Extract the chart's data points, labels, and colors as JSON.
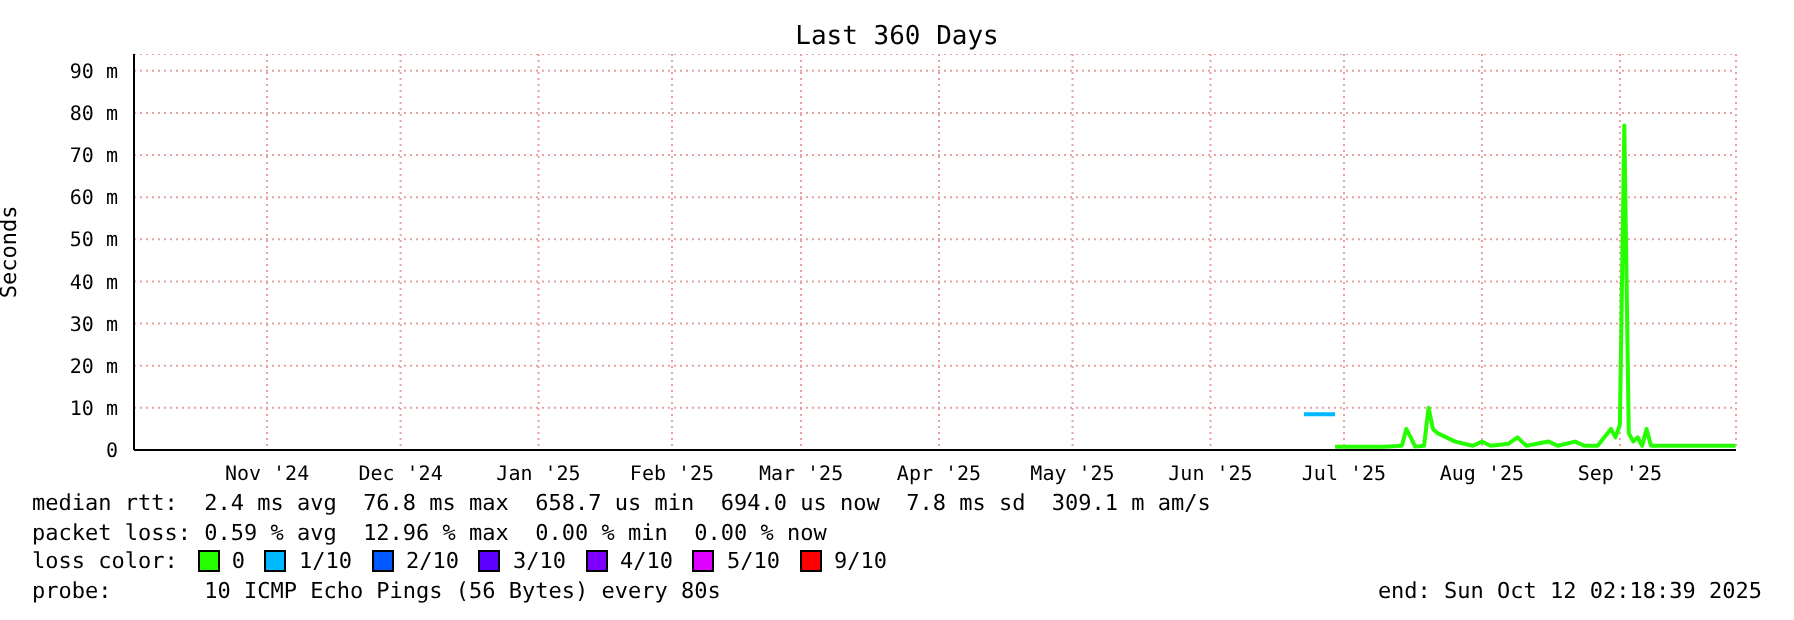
{
  "chart_data": {
    "type": "line",
    "title": "Last 360 Days",
    "ylabel": "Seconds",
    "xlim": [
      "2024-10-17T02:18",
      "2025-10-12T02:18"
    ],
    "xticks": [
      {
        "value": "2024-11-16",
        "label": "Nov '24"
      },
      {
        "value": "2024-12-16",
        "label": "Dec '24"
      },
      {
        "value": "2025-01-16",
        "label": "Jan '25"
      },
      {
        "value": "2025-02-15",
        "label": "Feb '25"
      },
      {
        "value": "2025-03-16",
        "label": "Mar '25"
      },
      {
        "value": "2025-04-16",
        "label": "Apr '25"
      },
      {
        "value": "2025-05-16",
        "label": "May '25"
      },
      {
        "value": "2025-06-16",
        "label": "Jun '25"
      },
      {
        "value": "2025-07-16",
        "label": "Jul '25"
      },
      {
        "value": "2025-08-16",
        "label": "Aug '25"
      },
      {
        "value": "2025-09-16",
        "label": "Sep '25"
      }
    ],
    "ylim": [
      0,
      94
    ],
    "yticks": [
      0,
      {
        "value": 10,
        "label": "10 m"
      },
      {
        "value": 20,
        "label": "20 m"
      },
      {
        "value": 30,
        "label": "30 m"
      },
      {
        "value": 40,
        "label": "40 m"
      },
      {
        "value": 50,
        "label": "50 m"
      },
      {
        "value": 60,
        "label": "60 m"
      },
      {
        "value": 70,
        "label": "70 m"
      },
      {
        "value": 80,
        "label": "80 m"
      },
      {
        "value": 90,
        "label": "90 m"
      }
    ],
    "grid": true,
    "legend": "bottom",
    "legend_title": "loss color:",
    "marker": "none",
    "line_style": "solid",
    "series": [
      {
        "name": "0",
        "color": "#26ff00",
        "x": [
          "2025-07-14",
          "2025-07-25",
          "2025-07-29",
          "2025-07-30",
          "2025-07-31",
          "2025-08-01",
          "2025-08-03",
          "2025-08-04",
          "2025-08-05",
          "2025-08-06",
          "2025-08-08",
          "2025-08-10",
          "2025-08-12",
          "2025-08-14",
          "2025-08-16",
          "2025-08-18",
          "2025-08-22",
          "2025-08-24",
          "2025-08-26",
          "2025-08-31",
          "2025-09-02",
          "2025-09-06",
          "2025-09-08",
          "2025-09-11",
          "2025-09-14",
          "2025-09-15",
          "2025-09-16",
          "2025-09-17",
          "2025-09-18",
          "2025-09-19",
          "2025-09-20",
          "2025-09-21",
          "2025-09-22",
          "2025-09-23",
          "2025-10-01",
          "2025-10-12"
        ],
        "values": [
          0.8,
          0.8,
          1,
          5,
          3,
          0.8,
          1,
          10,
          5,
          4,
          3,
          2,
          1.5,
          1,
          2,
          1,
          1.5,
          3,
          1,
          2,
          1,
          2,
          1,
          1,
          5,
          3,
          6,
          77,
          4,
          2,
          3,
          1,
          5,
          1,
          1,
          1
        ]
      },
      {
        "name": "1/10",
        "color": "#00b8ff",
        "x": [
          "2025-07-07",
          "2025-07-14"
        ],
        "values": [
          8.5,
          8.5
        ]
      },
      {
        "name": "2/10",
        "color": "#0059ff"
      },
      {
        "name": "3/10",
        "color": "#5e00ff"
      },
      {
        "name": "4/10",
        "color": "#7e00ff"
      },
      {
        "name": "5/10",
        "color": "#dd00ff"
      },
      {
        "name": "9/10",
        "color": "#ff0000"
      }
    ],
    "annotations": [
      "median rtt:  2.4 ms avg  76.8 ms max  658.7 us min  694.0 us now  7.8 ms sd  309.1 m am/s",
      "packet loss: 0.59 % avg  12.96 % max  0.00 % min  0.00 % now",
      "probe:       10 ICMP Echo Pings (56 Bytes) every 80s",
      "end: Sun Oct 12 02:18:39 2025"
    ]
  }
}
